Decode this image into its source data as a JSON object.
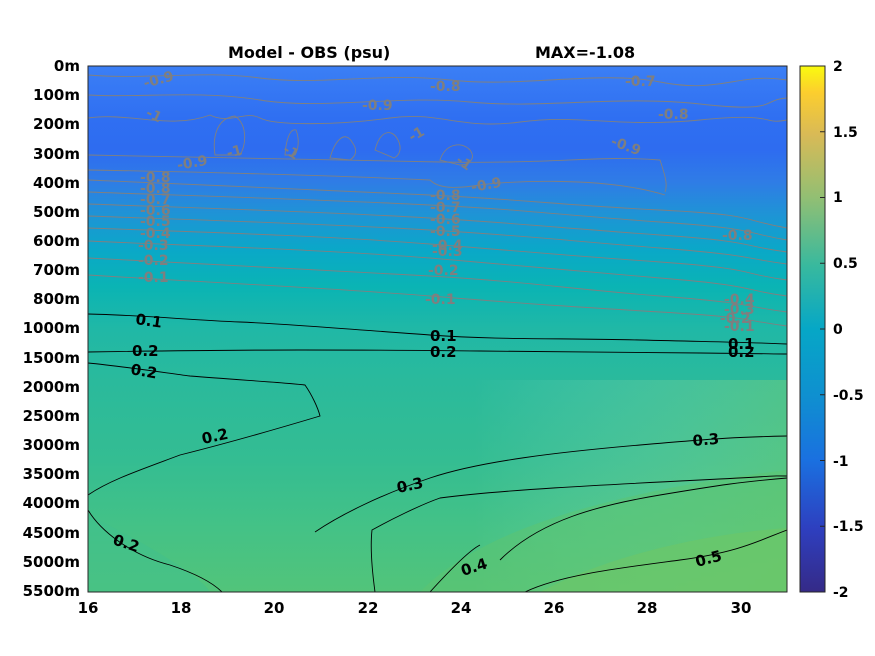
{
  "chart_data": {
    "type": "heatmap",
    "title": "Model - OBS (psu)",
    "annotation": "MAX=-1.08",
    "xlabel": "",
    "ylabel": "",
    "x_ticks": [
      "16",
      "18",
      "20",
      "22",
      "24",
      "26",
      "28",
      "30"
    ],
    "xlim": [
      16,
      31
    ],
    "y_ticks": [
      "0m",
      "100m",
      "200m",
      "300m",
      "400m",
      "500m",
      "600m",
      "700m",
      "800m",
      "1000m",
      "1500m",
      "2000m",
      "2500m",
      "3000m",
      "3500m",
      "4000m",
      "4500m",
      "5000m",
      "5500m"
    ],
    "colorbar": {
      "colormap": "parula",
      "clim": [
        -2,
        2
      ],
      "ticks": [
        "2",
        "1.5",
        "1",
        "0.5",
        "0",
        "-0.5",
        "-1",
        "-1.5",
        "-2"
      ]
    },
    "depth_profile": [
      {
        "depth": "0m",
        "value": -0.85
      },
      {
        "depth": "100m",
        "value": -0.9
      },
      {
        "depth": "200m",
        "value": -0.95
      },
      {
        "depth": "300m",
        "value": -0.9
      },
      {
        "depth": "400m",
        "value": -0.75
      },
      {
        "depth": "500m",
        "value": -0.55
      },
      {
        "depth": "600m",
        "value": -0.35
      },
      {
        "depth": "700m",
        "value": -0.2
      },
      {
        "depth": "800m",
        "value": -0.05
      },
      {
        "depth": "1000m",
        "value": 0.1
      },
      {
        "depth": "1500m",
        "value": 0.2
      },
      {
        "depth": "2000m",
        "value": 0.22
      },
      {
        "depth": "2500m",
        "value": 0.24
      },
      {
        "depth": "3000m",
        "value": 0.25
      },
      {
        "depth": "3500m",
        "value": 0.28
      },
      {
        "depth": "4000m",
        "value": 0.3
      },
      {
        "depth": "4500m",
        "value": 0.33
      },
      {
        "depth": "5000m",
        "value": 0.36
      },
      {
        "depth": "5500m",
        "value": 0.4
      }
    ],
    "contour_labels_upper": [
      "-0.9",
      "-0.8",
      "-0.7",
      "-1",
      "-0.9",
      "-0.8",
      "-0.9",
      "-1",
      "-1",
      "-1",
      "-1",
      "-0.9",
      "-0.8",
      "-0.9",
      "-0.8",
      "-0.7",
      "-0.6",
      "-0.5",
      "-0.4",
      "-0.3",
      "-0.2",
      "-0.1",
      "-0.8",
      "-0.7",
      "-0.6",
      "-0.5",
      "-0.4",
      "-0.3",
      "-0.2",
      "-0.1",
      "-0.8",
      "-0.4",
      "-0.3",
      "-0.2",
      "-0.1"
    ],
    "contour_labels_lower": [
      "0.1",
      "0.1",
      "0.1",
      "0.2",
      "0.2",
      "0.2",
      "0.2",
      "0.2",
      "0.3",
      "0.3",
      "0.2",
      "0.4",
      "0.5"
    ],
    "colors": {
      "contour_dark": "#000000",
      "contour_grey": "#808080"
    }
  }
}
